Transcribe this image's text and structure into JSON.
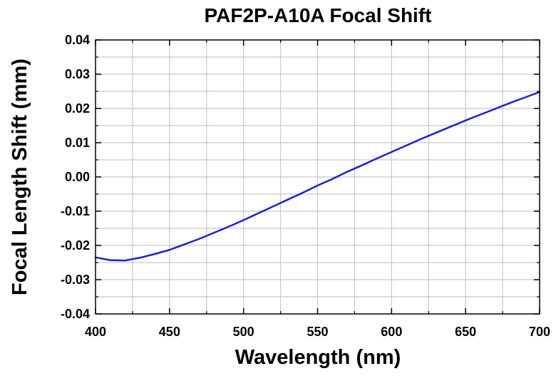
{
  "chart_data": {
    "type": "line",
    "title": "PAF2P-A10A Focal Shift",
    "xlabel": "Wavelength (nm)",
    "ylabel": "Focal Length Shift (mm)",
    "xlim": [
      400,
      700
    ],
    "ylim": [
      -0.04,
      0.04
    ],
    "x_ticks": [
      400,
      450,
      500,
      550,
      600,
      650,
      700
    ],
    "x_tick_labels": [
      "400",
      "450",
      "500",
      "550",
      "600",
      "650",
      "700"
    ],
    "y_ticks": [
      0.04,
      0.03,
      0.02,
      0.01,
      0.0,
      -0.01,
      -0.02,
      -0.03,
      -0.04
    ],
    "y_tick_labels": [
      "0.04",
      "0.03",
      "0.02",
      "0.01",
      "0.00",
      "-0.01",
      "-0.02",
      "-0.03",
      "-0.04"
    ],
    "x_minor_step": 25,
    "y_minor_step": 0.005,
    "grid": true,
    "line_color": "#1f1fd6",
    "grid_color": "#c8c8c8",
    "series": [
      {
        "x": [
          400,
          410,
          420,
          430,
          440,
          450,
          460,
          470,
          480,
          490,
          500,
          510,
          520,
          530,
          540,
          550,
          560,
          570,
          580,
          590,
          600,
          610,
          620,
          630,
          640,
          650,
          660,
          670,
          680,
          690,
          700
        ],
        "values": [
          -0.0235,
          -0.0243,
          -0.0244,
          -0.0236,
          -0.0225,
          -0.0213,
          -0.0197,
          -0.0181,
          -0.0163,
          -0.0145,
          -0.0126,
          -0.0106,
          -0.0086,
          -0.0066,
          -0.0046,
          -0.0025,
          -0.0006,
          0.0015,
          0.0034,
          0.0054,
          0.0073,
          0.0092,
          0.0111,
          0.0129,
          0.0147,
          0.0165,
          0.0182,
          0.0199,
          0.0216,
          0.0232,
          0.0248
        ]
      }
    ]
  }
}
